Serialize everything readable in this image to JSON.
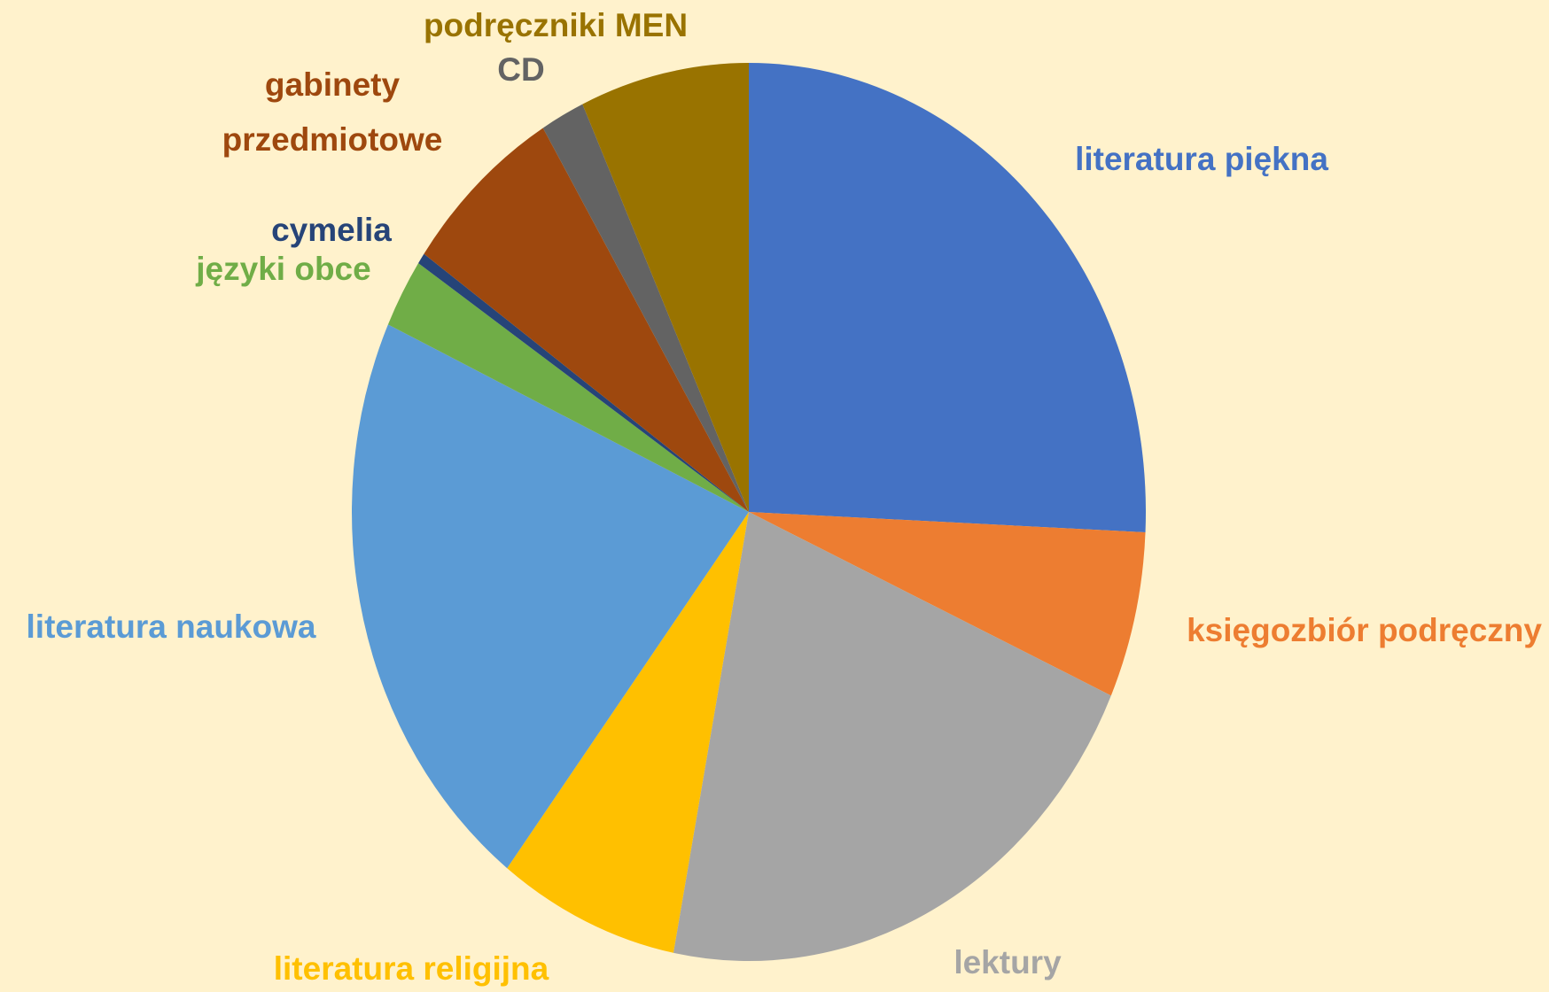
{
  "chart_data": {
    "type": "pie",
    "categories": [
      "literatura piękna",
      "księgozbiór podręczny",
      "lektury",
      "literatura religijna",
      "literatura naukowa",
      "języki obce",
      "cymelia",
      "gabinety przedmiotowe",
      "CD",
      "podręczniki MEN"
    ],
    "values": [
      25.8,
      6.0,
      21.4,
      7.4,
      21.5,
      2.5,
      0.4,
      6.6,
      1.8,
      6.9
    ],
    "colors": [
      "#4472c4",
      "#ed7d31",
      "#a5a5a5",
      "#ffc000",
      "#5b9bd5",
      "#70ad47",
      "#264478",
      "#9e480e",
      "#636363",
      "#997300"
    ]
  }
}
